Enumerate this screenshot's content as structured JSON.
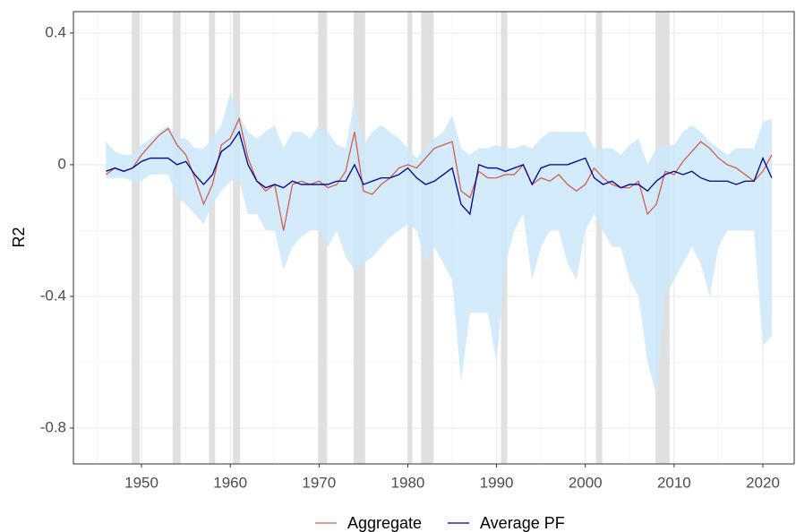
{
  "chart_data": {
    "type": "line",
    "y_label": "R2",
    "xlim": [
      1942.33,
      2023.53
    ],
    "ylim": [
      -0.909,
      0.465
    ],
    "xticks": [
      1950,
      1960,
      1970,
      1980,
      1990,
      2000,
      2010,
      2020
    ],
    "yticks": [
      0.4,
      0.0,
      -0.4,
      -0.8
    ],
    "x_minor_ticks": [
      1945,
      1955,
      1965,
      1975,
      1985,
      1995,
      2005,
      2015
    ],
    "y_minor_ticks": [
      0.2,
      -0.2,
      -0.6
    ],
    "grid": true,
    "legend": "bottom",
    "recession_color": "#e0e0e0",
    "recessions": [
      [
        1948.9,
        1949.8
      ],
      [
        1953.5,
        1954.4
      ],
      [
        1957.6,
        1958.3
      ],
      [
        1960.3,
        1961.1
      ],
      [
        1969.9,
        1970.9
      ],
      [
        1973.9,
        1975.2
      ],
      [
        1980.0,
        1980.5
      ],
      [
        1981.5,
        1982.9
      ],
      [
        1990.5,
        1991.2
      ],
      [
        2001.2,
        2001.9
      ],
      [
        2007.9,
        2009.5
      ]
    ],
    "x": [
      1946,
      1947,
      1948,
      1949,
      1950,
      1951,
      1952,
      1953,
      1954,
      1955,
      1956,
      1957,
      1958,
      1959,
      1960,
      1961,
      1962,
      1963,
      1964,
      1965,
      1966,
      1967,
      1968,
      1969,
      1970,
      1971,
      1972,
      1973,
      1974,
      1975,
      1976,
      1977,
      1978,
      1979,
      1980,
      1981,
      1982,
      1983,
      1984,
      1985,
      1986,
      1987,
      1988,
      1989,
      1990,
      1991,
      1992,
      1993,
      1994,
      1995,
      1996,
      1997,
      1998,
      1999,
      2000,
      2001,
      2002,
      2003,
      2004,
      2005,
      2006,
      2007,
      2008,
      2009,
      2010,
      2011,
      2012,
      2013,
      2014,
      2015,
      2016,
      2017,
      2018,
      2019,
      2020,
      2021
    ],
    "band": {
      "color": "#cde8fb",
      "lower": [
        -0.04,
        -0.04,
        -0.04,
        -0.05,
        -0.05,
        -0.03,
        -0.03,
        -0.03,
        -0.1,
        -0.12,
        -0.15,
        -0.18,
        -0.12,
        -0.08,
        -0.05,
        -0.05,
        -0.15,
        -0.15,
        -0.2,
        -0.2,
        -0.32,
        -0.25,
        -0.22,
        -0.2,
        -0.2,
        -0.25,
        -0.2,
        -0.28,
        -0.32,
        -0.3,
        -0.28,
        -0.25,
        -0.22,
        -0.2,
        -0.18,
        -0.2,
        -0.3,
        -0.25,
        -0.3,
        -0.35,
        -0.66,
        -0.45,
        -0.45,
        -0.45,
        -0.6,
        -0.3,
        -0.2,
        -0.15,
        -0.35,
        -0.25,
        -0.2,
        -0.2,
        -0.3,
        -0.35,
        -0.2,
        -0.15,
        -0.2,
        -0.25,
        -0.25,
        -0.35,
        -0.4,
        -0.6,
        -0.7,
        -0.4,
        -0.35,
        -0.3,
        -0.25,
        -0.3,
        -0.4,
        -0.25,
        -0.2,
        -0.2,
        -0.2,
        -0.2,
        -0.55,
        -0.52
      ],
      "upper": [
        0.07,
        0.04,
        0.03,
        0.03,
        0.06,
        0.08,
        0.1,
        0.12,
        0.08,
        0.08,
        0.05,
        0.05,
        0.08,
        0.12,
        0.22,
        0.15,
        0.1,
        0.08,
        0.1,
        0.12,
        0.05,
        0.1,
        0.1,
        0.08,
        0.12,
        0.1,
        0.06,
        0.05,
        0.2,
        0.06,
        0.1,
        0.12,
        0.1,
        0.08,
        0.05,
        0.02,
        0.05,
        0.08,
        0.1,
        0.15,
        0.05,
        0.03,
        0.05,
        0.05,
        0.06,
        0.05,
        0.05,
        0.06,
        0.05,
        0.08,
        0.1,
        0.1,
        0.1,
        0.1,
        0.1,
        0.05,
        0.05,
        0.05,
        0.03,
        0.06,
        0.08,
        0.0,
        0.05,
        0.06,
        0.06,
        0.1,
        0.12,
        0.1,
        0.07,
        0.05,
        0.03,
        0.05,
        0.05,
        0.05,
        0.13,
        0.14
      ]
    },
    "series": [
      {
        "name": "Aggregate",
        "color": "#d2604c",
        "values": [
          -0.03,
          -0.01,
          -0.02,
          -0.01,
          0.03,
          0.06,
          0.09,
          0.11,
          0.06,
          0.03,
          -0.04,
          -0.12,
          -0.06,
          0.06,
          0.08,
          0.14,
          0.02,
          -0.05,
          -0.08,
          -0.06,
          -0.2,
          -0.06,
          -0.05,
          -0.06,
          -0.05,
          -0.07,
          -0.06,
          -0.02,
          0.1,
          -0.08,
          -0.09,
          -0.06,
          -0.04,
          -0.01,
          0.0,
          -0.01,
          0.02,
          0.05,
          0.06,
          0.07,
          -0.08,
          -0.1,
          -0.02,
          -0.04,
          -0.04,
          -0.03,
          -0.03,
          0.0,
          -0.06,
          -0.04,
          -0.05,
          -0.03,
          -0.06,
          -0.08,
          -0.06,
          -0.01,
          -0.04,
          -0.06,
          -0.07,
          -0.07,
          -0.05,
          -0.15,
          -0.12,
          -0.02,
          -0.03,
          0.01,
          0.04,
          0.07,
          0.05,
          0.02,
          0.0,
          -0.01,
          -0.03,
          -0.05,
          -0.02,
          0.03
        ]
      },
      {
        "name": "Average PF",
        "color": "#00008b",
        "values": [
          -0.02,
          -0.01,
          -0.02,
          -0.01,
          0.01,
          0.02,
          0.02,
          0.02,
          0.0,
          0.01,
          -0.03,
          -0.06,
          -0.03,
          0.04,
          0.06,
          0.1,
          0.0,
          -0.05,
          -0.07,
          -0.06,
          -0.07,
          -0.05,
          -0.06,
          -0.06,
          -0.06,
          -0.06,
          -0.05,
          -0.05,
          0.0,
          -0.06,
          -0.05,
          -0.04,
          -0.04,
          -0.03,
          -0.01,
          -0.04,
          -0.06,
          -0.05,
          -0.03,
          -0.01,
          -0.12,
          -0.15,
          0.0,
          -0.01,
          -0.01,
          -0.02,
          -0.01,
          0.0,
          -0.06,
          -0.01,
          0.0,
          0.0,
          0.0,
          0.01,
          0.02,
          -0.04,
          -0.06,
          -0.05,
          -0.07,
          -0.06,
          -0.06,
          -0.08,
          -0.05,
          -0.03,
          -0.02,
          -0.03,
          -0.02,
          -0.04,
          -0.05,
          -0.05,
          -0.05,
          -0.06,
          -0.05,
          -0.05,
          0.02,
          -0.04
        ]
      }
    ]
  }
}
